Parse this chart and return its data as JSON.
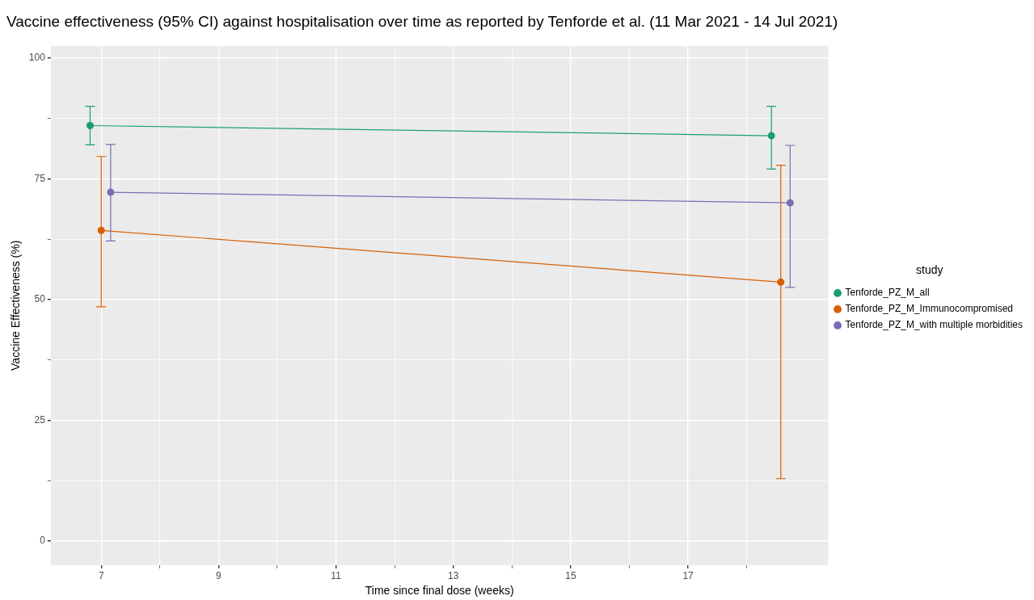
{
  "chart_data": {
    "type": "line",
    "title": "Vaccine effectiveness (95% CI) against hospitalisation over time as reported by Tenforde et al. (11 Mar 2021 - 14 Jul 2021)",
    "xlabel": "Time since final dose (weeks)",
    "ylabel": "Vaccine Effectiveness (%)",
    "legend_title": "study",
    "legend": "right",
    "grid": true,
    "marker": "circle",
    "line_style": "solid",
    "xlim": [
      6.14,
      19.39
    ],
    "xticks": [
      7,
      {
        "value": 8,
        "label": null
      },
      9,
      {
        "value": 10,
        "label": null
      },
      11,
      {
        "value": 12,
        "label": null
      },
      13,
      {
        "value": 14,
        "label": null
      },
      15,
      {
        "value": 16,
        "label": null
      },
      17,
      {
        "value": 18,
        "label": null
      }
    ],
    "ylim": [
      -5,
      102.5
    ],
    "yticks": [
      0,
      {
        "value": 12.5,
        "label": null
      },
      25,
      {
        "value": 37.5,
        "label": null
      },
      50,
      {
        "value": 62.5,
        "label": null
      },
      75,
      {
        "value": 87.5,
        "label": null
      },
      100
    ],
    "series": [
      {
        "name": "Tenforde_PZ_M_all",
        "color": "#1b9e77",
        "x": [
          6.81,
          18.42
        ],
        "values": [
          86,
          83.9
        ],
        "errors": [
          [
            82,
            90
          ],
          [
            77,
            90
          ]
        ]
      },
      {
        "name": "Tenforde_PZ_M_Immunocompromised",
        "color": "#d95f02",
        "x": [
          7.0,
          18.58
        ],
        "values": [
          64.3,
          53.6
        ],
        "errors": [
          [
            48.5,
            79.6
          ],
          [
            12.9,
            77.8
          ]
        ]
      },
      {
        "name": "Tenforde_PZ_M_with multiple morbidities",
        "color": "#7570b3",
        "x": [
          7.16,
          18.74
        ],
        "values": [
          72.2,
          70.0
        ],
        "errors": [
          [
            62.1,
            82.1
          ],
          [
            52.5,
            81.9
          ]
        ]
      }
    ]
  }
}
